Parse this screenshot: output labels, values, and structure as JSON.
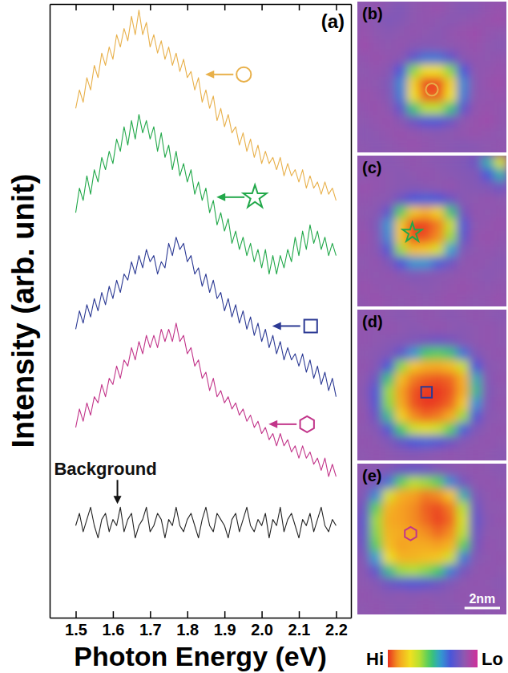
{
  "chart_data": [
    {
      "type": "line",
      "title": "(a)",
      "xlabel": "Photon Energy (eV)",
      "ylabel": "Intensity (arb. unit)",
      "x": [
        1.5,
        1.51,
        1.52,
        1.53,
        1.54,
        1.55,
        1.56,
        1.57,
        1.58,
        1.59,
        1.6,
        1.61,
        1.62,
        1.63,
        1.64,
        1.65,
        1.66,
        1.67,
        1.68,
        1.69,
        1.7,
        1.71,
        1.72,
        1.73,
        1.74,
        1.75,
        1.76,
        1.77,
        1.78,
        1.79,
        1.8,
        1.81,
        1.82,
        1.83,
        1.84,
        1.85,
        1.86,
        1.87,
        1.88,
        1.89,
        1.9,
        1.91,
        1.92,
        1.93,
        1.94,
        1.95,
        1.96,
        1.97,
        1.98,
        1.99,
        2,
        2.01,
        2.02,
        2.03,
        2.04,
        2.05,
        2.06,
        2.07,
        2.08,
        2.09,
        2.1,
        2.11,
        2.12,
        2.13,
        2.14,
        2.15,
        2.16,
        2.17,
        2.18,
        2.19,
        2.2
      ],
      "xlim": [
        1.43,
        2.24
      ],
      "xticks": [
        1.5,
        1.6,
        1.7,
        1.8,
        1.9,
        {
          "value": 2,
          "label": "2.0"
        },
        2.1,
        2.2
      ],
      "ylim": [
        0,
        10
      ],
      "tick_labels": "x",
      "series": [
        {
          "color": "#e8b04a",
          "marker": "circle",
          "values": [
            8.3,
            8.6,
            8.4,
            8.8,
            8.6,
            9.0,
            8.8,
            9.2,
            9.0,
            9.3,
            9.1,
            9.5,
            9.3,
            9.6,
            9.4,
            9.8,
            9.5,
            9.9,
            9.5,
            9.7,
            9.3,
            9.5,
            9.2,
            9.4,
            9.1,
            9.3,
            9.0,
            9.2,
            8.9,
            9.1,
            8.8,
            8.9,
            8.6,
            8.8,
            8.4,
            8.6,
            8.3,
            8.5,
            8.1,
            8.3,
            8.0,
            8.2,
            7.9,
            8.0,
            7.7,
            7.9,
            7.6,
            7.8,
            7.5,
            7.7,
            7.4,
            7.6,
            7.4,
            7.5,
            7.3,
            7.5,
            7.2,
            7.4,
            7.2,
            7.3,
            7.1,
            7.3,
            7.0,
            7.2,
            7.0,
            7.1,
            6.9,
            7.1,
            6.9,
            7.0,
            6.8
          ]
        },
        {
          "color": "#22a84a",
          "marker": "star",
          "values": [
            6.6,
            7.0,
            6.8,
            7.2,
            6.9,
            7.3,
            7.1,
            7.5,
            7.3,
            7.6,
            7.4,
            7.8,
            7.6,
            8.0,
            7.7,
            8.1,
            7.8,
            8.2,
            7.9,
            8.1,
            7.8,
            8.0,
            7.6,
            7.9,
            7.5,
            7.7,
            7.3,
            7.6,
            7.2,
            7.4,
            7.1,
            7.3,
            6.9,
            7.1,
            6.8,
            7.0,
            6.6,
            6.8,
            6.4,
            6.6,
            6.3,
            6.5,
            6.1,
            6.3,
            6.0,
            6.2,
            5.9,
            6.1,
            5.8,
            6.0,
            5.7,
            6.0,
            5.6,
            5.9,
            5.6,
            5.9,
            5.7,
            6.0,
            5.8,
            6.2,
            5.9,
            6.3,
            6.0,
            6.4,
            6.1,
            6.3,
            6.0,
            6.2,
            5.9,
            6.1,
            5.9
          ]
        },
        {
          "color": "#2c3a94",
          "marker": "square",
          "values": [
            4.7,
            5.0,
            4.8,
            5.1,
            4.9,
            5.2,
            5.0,
            5.3,
            5.1,
            5.4,
            5.2,
            5.5,
            5.3,
            5.6,
            5.5,
            5.8,
            5.6,
            5.9,
            5.7,
            6.0,
            5.8,
            5.9,
            5.6,
            5.8,
            5.7,
            6.1,
            5.9,
            6.2,
            6.0,
            6.1,
            5.8,
            5.9,
            5.6,
            5.7,
            5.4,
            5.6,
            5.3,
            5.5,
            5.2,
            5.3,
            5.0,
            5.2,
            4.9,
            5.1,
            4.8,
            5.0,
            4.7,
            4.9,
            4.6,
            4.8,
            4.5,
            4.7,
            4.4,
            4.6,
            4.3,
            4.5,
            4.2,
            4.4,
            4.2,
            4.3,
            4.1,
            4.3,
            4.0,
            4.2,
            3.9,
            4.1,
            3.8,
            4.0,
            3.7,
            3.9,
            3.6
          ]
        },
        {
          "color": "#c2358a",
          "marker": "hexagon",
          "values": [
            3.1,
            3.4,
            3.2,
            3.5,
            3.3,
            3.6,
            3.5,
            3.8,
            3.6,
            3.9,
            3.8,
            4.1,
            3.9,
            4.2,
            4.1,
            4.4,
            4.2,
            4.5,
            4.3,
            4.6,
            4.4,
            4.6,
            4.4,
            4.7,
            4.5,
            4.7,
            4.5,
            4.8,
            4.5,
            4.6,
            4.3,
            4.4,
            4.1,
            4.2,
            3.9,
            4.0,
            3.7,
            3.9,
            3.6,
            3.7,
            3.5,
            3.6,
            3.4,
            3.5,
            3.3,
            3.4,
            3.2,
            3.3,
            3.1,
            3.2,
            3.0,
            3.1,
            2.9,
            3.0,
            2.8,
            3.0,
            2.8,
            2.9,
            2.7,
            2.8,
            2.6,
            2.8,
            2.6,
            2.7,
            2.5,
            2.6,
            2.4,
            2.6,
            2.3,
            2.5,
            2.3
          ]
        },
        {
          "name": "Background",
          "color": "#222222",
          "values": [
            1.5,
            1.7,
            1.4,
            1.6,
            1.8,
            1.5,
            1.3,
            1.6,
            1.7,
            1.4,
            1.6,
            1.5,
            1.8,
            1.4,
            1.6,
            1.7,
            1.3,
            1.5,
            1.6,
            1.8,
            1.4,
            1.5,
            1.7,
            1.6,
            1.3,
            1.6,
            1.5,
            1.8,
            1.5,
            1.4,
            1.6,
            1.7,
            1.5,
            1.3,
            1.6,
            1.8,
            1.5,
            1.4,
            1.7,
            1.6,
            1.5,
            1.3,
            1.6,
            1.7,
            1.4,
            1.6,
            1.8,
            1.5,
            1.4,
            1.6,
            1.5,
            1.7,
            1.3,
            1.6,
            1.5,
            1.8,
            1.4,
            1.6,
            1.7,
            1.5,
            1.3,
            1.6,
            1.5,
            1.7,
            1.4,
            1.6,
            1.8,
            1.5,
            1.4,
            1.6,
            1.5
          ]
        }
      ]
    },
    {
      "type": "heatmap",
      "title": "(b)",
      "xlim": [
        0,
        8.4
      ],
      "ylim": [
        0,
        8.4
      ],
      "tick_labels": false,
      "cells": [
        [
          15,
          14,
          16,
          18,
          15,
          14,
          13,
          15,
          17,
          16,
          14,
          13
        ],
        [
          14,
          16,
          18,
          17,
          15,
          14,
          15,
          16,
          15,
          14,
          13,
          12
        ],
        [
          13,
          15,
          16,
          15,
          14,
          15,
          16,
          14,
          13,
          12,
          14,
          15
        ],
        [
          12,
          14,
          15,
          14,
          16,
          17,
          16,
          15,
          14,
          13,
          15,
          16
        ],
        [
          14,
          13,
          14,
          16,
          25,
          35,
          35,
          25,
          16,
          14,
          15,
          14
        ],
        [
          15,
          14,
          16,
          30,
          60,
          75,
          75,
          60,
          30,
          15,
          14,
          13
        ],
        [
          14,
          15,
          18,
          38,
          78,
          98,
          98,
          78,
          38,
          16,
          13,
          12
        ],
        [
          13,
          14,
          17,
          36,
          75,
          95,
          95,
          75,
          36,
          15,
          14,
          13
        ],
        [
          14,
          13,
          15,
          25,
          50,
          65,
          65,
          50,
          25,
          14,
          13,
          14
        ],
        [
          15,
          14,
          13,
          16,
          22,
          28,
          28,
          22,
          15,
          13,
          12,
          14
        ],
        [
          16,
          15,
          14,
          13,
          14,
          15,
          16,
          15,
          14,
          13,
          14,
          15
        ],
        [
          15,
          16,
          15,
          14,
          13,
          14,
          15,
          16,
          17,
          16,
          15,
          14
        ]
      ],
      "points": [
        {
          "x": 4.2,
          "y": 4.9,
          "marker": "circle",
          "color": "#e8b04a"
        }
      ]
    },
    {
      "type": "heatmap",
      "title": "(c)",
      "xlim": [
        0,
        8.4
      ],
      "ylim": [
        0,
        8.4
      ],
      "tick_labels": false,
      "cells": [
        [
          14,
          15,
          16,
          15,
          14,
          15,
          16,
          17,
          18,
          22,
          45,
          70
        ],
        [
          15,
          14,
          15,
          16,
          15,
          14,
          15,
          16,
          17,
          18,
          30,
          45
        ],
        [
          13,
          14,
          15,
          16,
          17,
          16,
          15,
          14,
          16,
          17,
          18,
          22
        ],
        [
          14,
          15,
          16,
          22,
          30,
          32,
          30,
          22,
          16,
          15,
          14,
          15
        ],
        [
          15,
          16,
          25,
          55,
          80,
          85,
          78,
          50,
          20,
          14,
          15,
          14
        ],
        [
          14,
          18,
          40,
          80,
          98,
          98,
          92,
          68,
          28,
          15,
          14,
          13
        ],
        [
          13,
          17,
          38,
          80,
          97,
          96,
          90,
          62,
          25,
          14,
          13,
          14
        ],
        [
          14,
          16,
          28,
          62,
          82,
          80,
          70,
          42,
          18,
          15,
          14,
          15
        ],
        [
          15,
          14,
          18,
          30,
          40,
          40,
          32,
          22,
          15,
          14,
          15,
          16
        ],
        [
          14,
          15,
          14,
          16,
          18,
          17,
          16,
          15,
          14,
          15,
          16,
          15
        ],
        [
          13,
          14,
          15,
          14,
          15,
          16,
          15,
          14,
          13,
          14,
          15,
          14
        ],
        [
          14,
          13,
          14,
          15,
          14,
          15,
          14,
          13,
          14,
          15,
          14,
          13
        ]
      ],
      "points": [
        {
          "x": 3.1,
          "y": 4.3,
          "marker": "star",
          "color": "#22a84a"
        }
      ]
    },
    {
      "type": "heatmap",
      "title": "(d)",
      "xlim": [
        0,
        8.4
      ],
      "ylim": [
        0,
        8.4
      ],
      "tick_labels": false,
      "cells": [
        [
          15,
          14,
          15,
          16,
          15,
          14,
          15,
          16,
          15,
          14,
          15,
          16
        ],
        [
          14,
          15,
          14,
          15,
          16,
          15,
          14,
          15,
          16,
          15,
          14,
          15
        ],
        [
          14,
          15,
          16,
          17,
          18,
          20,
          22,
          20,
          17,
          15,
          14,
          15
        ],
        [
          15,
          16,
          18,
          25,
          40,
          52,
          55,
          50,
          35,
          18,
          15,
          14
        ],
        [
          14,
          17,
          30,
          60,
          80,
          85,
          86,
          82,
          68,
          30,
          16,
          15
        ],
        [
          15,
          22,
          50,
          82,
          92,
          95,
          96,
          94,
          85,
          45,
          17,
          14
        ],
        [
          16,
          28,
          62,
          88,
          96,
          99,
          99,
          96,
          86,
          48,
          18,
          15
        ],
        [
          15,
          27,
          60,
          86,
          96,
          99,
          98,
          94,
          80,
          40,
          17,
          14
        ],
        [
          14,
          22,
          48,
          78,
          90,
          94,
          92,
          85,
          62,
          28,
          16,
          15
        ],
        [
          15,
          17,
          28,
          52,
          68,
          72,
          68,
          55,
          32,
          18,
          15,
          14
        ],
        [
          14,
          15,
          18,
          24,
          30,
          32,
          28,
          22,
          17,
          15,
          14,
          15
        ],
        [
          15,
          14,
          15,
          16,
          17,
          16,
          15,
          14,
          15,
          14,
          15,
          16
        ]
      ],
      "points": [
        {
          "x": 3.9,
          "y": 4.6,
          "marker": "square",
          "color": "#2c3a94"
        }
      ]
    },
    {
      "type": "heatmap",
      "title": "(e)",
      "xlim": [
        0,
        8.4
      ],
      "ylim": [
        0,
        8.4
      ],
      "tick_labels": false,
      "cells": [
        [
          15,
          16,
          18,
          22,
          24,
          22,
          18,
          16,
          15,
          14,
          15,
          16
        ],
        [
          16,
          20,
          35,
          55,
          65,
          62,
          55,
          38,
          20,
          15,
          14,
          15
        ],
        [
          18,
          38,
          70,
          85,
          88,
          92,
          90,
          80,
          45,
          18,
          15,
          14
        ],
        [
          22,
          55,
          84,
          88,
          90,
          95,
          97,
          92,
          65,
          22,
          15,
          15
        ],
        [
          25,
          62,
          86,
          88,
          90,
          94,
          98,
          94,
          70,
          24,
          16,
          14
        ],
        [
          24,
          60,
          84,
          86,
          88,
          90,
          94,
          90,
          66,
          22,
          15,
          15
        ],
        [
          22,
          55,
          82,
          88,
          86,
          86,
          88,
          84,
          55,
          20,
          14,
          15
        ],
        [
          18,
          42,
          74,
          84,
          84,
          82,
          80,
          68,
          36,
          17,
          15,
          14
        ],
        [
          16,
          25,
          48,
          62,
          64,
          60,
          52,
          36,
          20,
          15,
          14,
          15
        ],
        [
          15,
          17,
          22,
          26,
          28,
          26,
          22,
          18,
          15,
          14,
          15,
          16
        ],
        [
          14,
          15,
          16,
          15,
          16,
          15,
          16,
          15,
          14,
          15,
          14,
          15
        ],
        [
          15,
          14,
          15,
          16,
          15,
          14,
          15,
          16,
          15,
          14,
          15,
          14
        ]
      ],
      "points": [
        {
          "x": 3.0,
          "y": 3.9,
          "marker": "hexagon",
          "color": "#c2358a"
        }
      ],
      "scale_bar": {
        "value": 2,
        "label": "2nm"
      },
      "colorbar": {
        "range": [
          0,
          100
        ],
        "ticks": [
          {
            "value": 100,
            "label": "Hi"
          },
          {
            "value": 0,
            "label": "Lo"
          }
        ]
      }
    }
  ]
}
